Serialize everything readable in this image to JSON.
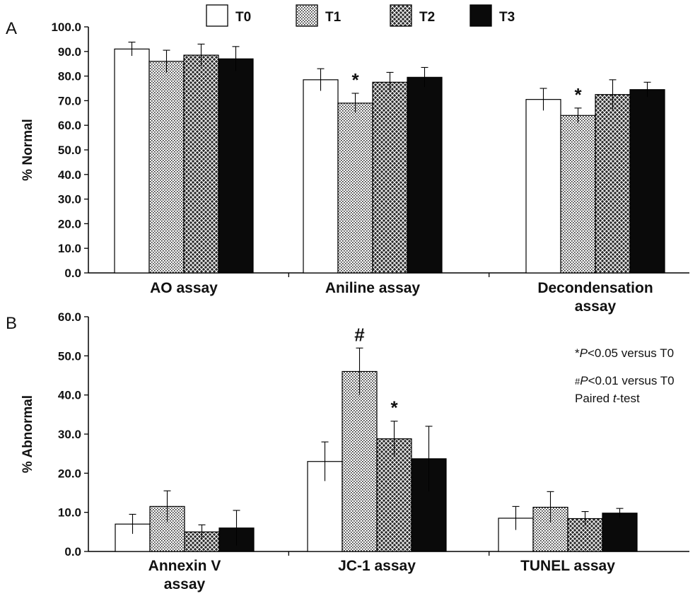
{
  "colors": {
    "axis": "#000000",
    "bar_stroke": "#000000",
    "T0": "#ffffff",
    "T3": "#0a0a0a"
  },
  "legend": [
    {
      "name": "T0",
      "fill": "white"
    },
    {
      "name": "T1",
      "fill": "dots"
    },
    {
      "name": "T2",
      "fill": "crosshatch"
    },
    {
      "name": "T3",
      "fill": "black"
    }
  ],
  "notes": {
    "line1_symbol": "*",
    "line1_p": "P",
    "line1_rest": "<0.05 versus T0",
    "line2_symbol": "#",
    "line2_p": "P",
    "line2_rest": "<0.01 versus T0",
    "line3_prefix": "Paired ",
    "line3_t": "t",
    "line3_suffix": "-test"
  },
  "chart_data": [
    {
      "type": "bar",
      "panel": "A",
      "ylabel": "% Normal",
      "ylim": [
        0,
        100
      ],
      "yticks": [
        "0.0",
        "10.0",
        "20.0",
        "30.0",
        "40.0",
        "50.0",
        "60.0",
        "70.0",
        "80.0",
        "90.0",
        "100.0"
      ],
      "categories": [
        [
          "AO assay"
        ],
        [
          "Aniline assay"
        ],
        [
          "Decondensation",
          "assay"
        ]
      ],
      "series": [
        {
          "name": "T0",
          "values": [
            91.0,
            78.5,
            70.5
          ],
          "errors": [
            2.8,
            4.5,
            4.5
          ]
        },
        {
          "name": "T1",
          "values": [
            86.0,
            69.0,
            64.0
          ],
          "errors": [
            4.5,
            4.0,
            3.0
          ]
        },
        {
          "name": "T2",
          "values": [
            88.5,
            77.5,
            72.5
          ],
          "errors": [
            4.5,
            4.0,
            6.0
          ]
        },
        {
          "name": "T3",
          "values": [
            87.0,
            79.5,
            74.5
          ],
          "errors": [
            5.0,
            4.0,
            3.0
          ]
        }
      ],
      "annotations": [
        {
          "text": "*",
          "category": 1,
          "series": 1
        },
        {
          "text": "*",
          "category": 2,
          "series": 1
        }
      ]
    },
    {
      "type": "bar",
      "panel": "B",
      "ylabel": "% Abnormal",
      "ylim": [
        0,
        60
      ],
      "yticks": [
        "0.0",
        "10.0",
        "20.0",
        "30.0",
        "40.0",
        "50.0",
        "60.0"
      ],
      "categories": [
        [
          "Annexin V",
          "assay"
        ],
        [
          "JC-1 assay"
        ],
        [
          "TUNEL assay"
        ]
      ],
      "series": [
        {
          "name": "T0",
          "values": [
            7.0,
            23.0,
            8.5
          ],
          "errors": [
            2.5,
            5.0,
            3.0
          ]
        },
        {
          "name": "T1",
          "values": [
            11.5,
            46.0,
            11.3
          ],
          "errors": [
            4.0,
            6.0,
            4.0
          ]
        },
        {
          "name": "T2",
          "values": [
            5.0,
            28.8,
            8.4
          ],
          "errors": [
            1.8,
            4.5,
            1.8
          ]
        },
        {
          "name": "T3",
          "values": [
            6.0,
            23.7,
            9.8
          ],
          "errors": [
            4.5,
            8.3,
            1.2
          ]
        }
      ],
      "annotations": [
        {
          "text": "#",
          "category": 1,
          "series": 1
        },
        {
          "text": "*",
          "category": 1,
          "series": 2
        }
      ]
    }
  ]
}
